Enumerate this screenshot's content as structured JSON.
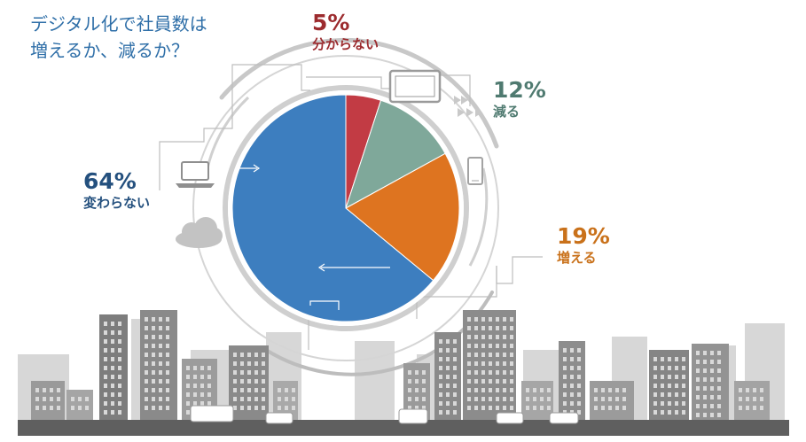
{
  "title_lines": [
    "デジタル化で社員数は",
    "増えるか、減るか？"
  ],
  "colors": {
    "same": "#3d7ebf",
    "decrease_slightly": "#c23b44",
    "decrease": "#7fa89a",
    "increase": "#de7420",
    "buildings": "#8f8f8f",
    "road": "#5f5f5f"
  },
  "chart_data": {
    "type": "pie",
    "title": "デジタル化で社員数は増えるか、減るか？",
    "slices": [
      {
        "label": "分からない",
        "value": 5,
        "display": "5%",
        "color": "#c23b44",
        "label_color": "#9c2b2e"
      },
      {
        "label": "減る",
        "value": 12,
        "display": "12%",
        "color": "#7fa89a",
        "label_color": "#4f7a70"
      },
      {
        "label": "増える",
        "value": 19,
        "display": "19%",
        "color": "#de7420",
        "label_color": "#c9711a"
      },
      {
        "label": "変わらない",
        "value": 64,
        "display": "64%",
        "color": "#3d7ebf",
        "label_color": "#24507e"
      }
    ],
    "start": "top",
    "direction": "clockwise"
  },
  "icons": [
    "monitor-icon",
    "tablet-icon",
    "laptop-icon",
    "cloud-icon",
    "fast-forward-icon"
  ]
}
